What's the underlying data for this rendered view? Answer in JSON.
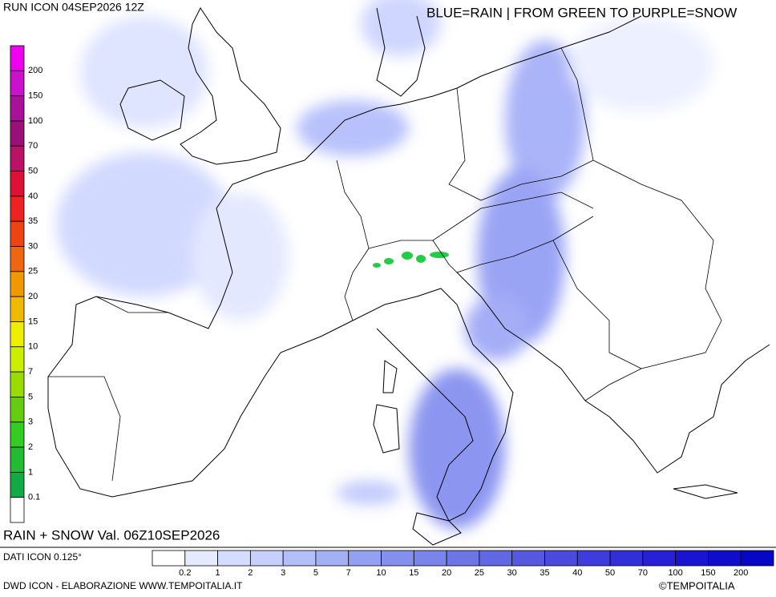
{
  "header": {
    "run": "RUN ICON 04SEP2026 12Z",
    "legend_title": "BLUE=RAIN | FROM GREEN TO PURPLE=SNOW"
  },
  "snow_scale": {
    "labels": [
      "200",
      "150",
      "100",
      "70",
      "50",
      "40",
      "35",
      "30",
      "25",
      "20",
      "15",
      "10",
      "7",
      "5",
      "3",
      "2",
      "1",
      "0.1"
    ],
    "colors": [
      "#ee00ee",
      "#cc11cc",
      "#aa1199",
      "#991177",
      "#bb1166",
      "#dd1133",
      "#ee2222",
      "#ee4411",
      "#ee6611",
      "#ee9900",
      "#eebb00",
      "#eeee00",
      "#ccee00",
      "#99dd00",
      "#66cc11",
      "#33cc22",
      "#22bb33",
      "#11aa44",
      "#ffffff"
    ]
  },
  "rain_scale": {
    "labels": [
      "0.2",
      "1",
      "2",
      "3",
      "5",
      "7",
      "10",
      "15",
      "20",
      "25",
      "30",
      "35",
      "40",
      "50",
      "70",
      "100",
      "150",
      "200"
    ],
    "colors": [
      "#ffffff",
      "#e6eaff",
      "#d4dcff",
      "#c6cffd",
      "#b4bff9",
      "#a4b0f6",
      "#94a0f2",
      "#8590ee",
      "#7a84ea",
      "#6e76e6",
      "#6268e3",
      "#5658e0",
      "#4a4ade",
      "#3e3cdc",
      "#322ed8",
      "#2620d6",
      "#1a14d2",
      "#100ccc",
      "#0806c6"
    ]
  },
  "footer": {
    "valid": "RAIN + SNOW Val. 06Z10SEP2026",
    "source": "DATI ICON 0.125°",
    "credit": "DWD ICON - ELABORAZIONE WWW.TEMPOITALIA.IT",
    "copyright": "©TEMPOITALIA"
  }
}
